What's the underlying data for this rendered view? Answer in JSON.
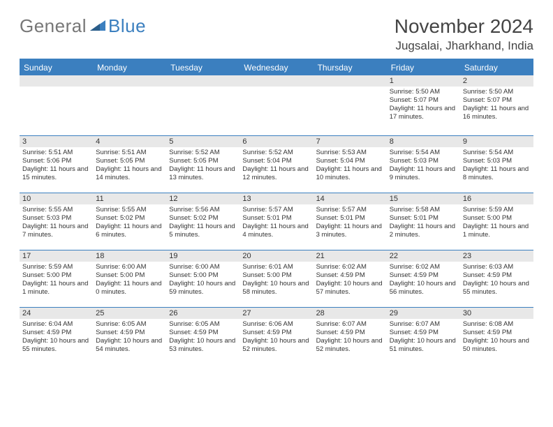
{
  "logo": {
    "general": "General",
    "blue": "Blue"
  },
  "header": {
    "title": "November 2024",
    "location": "Jugsalai, Jharkhand, India"
  },
  "colors": {
    "accent": "#3b7fbf",
    "headerRow": "#e8e8e8",
    "text": "#333333"
  },
  "daysOfWeek": [
    "Sunday",
    "Monday",
    "Tuesday",
    "Wednesday",
    "Thursday",
    "Friday",
    "Saturday"
  ],
  "weeks": [
    [
      {
        "day": "",
        "sunrise": "",
        "sunset": "",
        "daylight": ""
      },
      {
        "day": "",
        "sunrise": "",
        "sunset": "",
        "daylight": ""
      },
      {
        "day": "",
        "sunrise": "",
        "sunset": "",
        "daylight": ""
      },
      {
        "day": "",
        "sunrise": "",
        "sunset": "",
        "daylight": ""
      },
      {
        "day": "",
        "sunrise": "",
        "sunset": "",
        "daylight": ""
      },
      {
        "day": "1",
        "sunrise": "Sunrise: 5:50 AM",
        "sunset": "Sunset: 5:07 PM",
        "daylight": "Daylight: 11 hours and 17 minutes."
      },
      {
        "day": "2",
        "sunrise": "Sunrise: 5:50 AM",
        "sunset": "Sunset: 5:07 PM",
        "daylight": "Daylight: 11 hours and 16 minutes."
      }
    ],
    [
      {
        "day": "3",
        "sunrise": "Sunrise: 5:51 AM",
        "sunset": "Sunset: 5:06 PM",
        "daylight": "Daylight: 11 hours and 15 minutes."
      },
      {
        "day": "4",
        "sunrise": "Sunrise: 5:51 AM",
        "sunset": "Sunset: 5:05 PM",
        "daylight": "Daylight: 11 hours and 14 minutes."
      },
      {
        "day": "5",
        "sunrise": "Sunrise: 5:52 AM",
        "sunset": "Sunset: 5:05 PM",
        "daylight": "Daylight: 11 hours and 13 minutes."
      },
      {
        "day": "6",
        "sunrise": "Sunrise: 5:52 AM",
        "sunset": "Sunset: 5:04 PM",
        "daylight": "Daylight: 11 hours and 12 minutes."
      },
      {
        "day": "7",
        "sunrise": "Sunrise: 5:53 AM",
        "sunset": "Sunset: 5:04 PM",
        "daylight": "Daylight: 11 hours and 10 minutes."
      },
      {
        "day": "8",
        "sunrise": "Sunrise: 5:54 AM",
        "sunset": "Sunset: 5:03 PM",
        "daylight": "Daylight: 11 hours and 9 minutes."
      },
      {
        "day": "9",
        "sunrise": "Sunrise: 5:54 AM",
        "sunset": "Sunset: 5:03 PM",
        "daylight": "Daylight: 11 hours and 8 minutes."
      }
    ],
    [
      {
        "day": "10",
        "sunrise": "Sunrise: 5:55 AM",
        "sunset": "Sunset: 5:03 PM",
        "daylight": "Daylight: 11 hours and 7 minutes."
      },
      {
        "day": "11",
        "sunrise": "Sunrise: 5:55 AM",
        "sunset": "Sunset: 5:02 PM",
        "daylight": "Daylight: 11 hours and 6 minutes."
      },
      {
        "day": "12",
        "sunrise": "Sunrise: 5:56 AM",
        "sunset": "Sunset: 5:02 PM",
        "daylight": "Daylight: 11 hours and 5 minutes."
      },
      {
        "day": "13",
        "sunrise": "Sunrise: 5:57 AM",
        "sunset": "Sunset: 5:01 PM",
        "daylight": "Daylight: 11 hours and 4 minutes."
      },
      {
        "day": "14",
        "sunrise": "Sunrise: 5:57 AM",
        "sunset": "Sunset: 5:01 PM",
        "daylight": "Daylight: 11 hours and 3 minutes."
      },
      {
        "day": "15",
        "sunrise": "Sunrise: 5:58 AM",
        "sunset": "Sunset: 5:01 PM",
        "daylight": "Daylight: 11 hours and 2 minutes."
      },
      {
        "day": "16",
        "sunrise": "Sunrise: 5:59 AM",
        "sunset": "Sunset: 5:00 PM",
        "daylight": "Daylight: 11 hours and 1 minute."
      }
    ],
    [
      {
        "day": "17",
        "sunrise": "Sunrise: 5:59 AM",
        "sunset": "Sunset: 5:00 PM",
        "daylight": "Daylight: 11 hours and 1 minute."
      },
      {
        "day": "18",
        "sunrise": "Sunrise: 6:00 AM",
        "sunset": "Sunset: 5:00 PM",
        "daylight": "Daylight: 11 hours and 0 minutes."
      },
      {
        "day": "19",
        "sunrise": "Sunrise: 6:00 AM",
        "sunset": "Sunset: 5:00 PM",
        "daylight": "Daylight: 10 hours and 59 minutes."
      },
      {
        "day": "20",
        "sunrise": "Sunrise: 6:01 AM",
        "sunset": "Sunset: 5:00 PM",
        "daylight": "Daylight: 10 hours and 58 minutes."
      },
      {
        "day": "21",
        "sunrise": "Sunrise: 6:02 AM",
        "sunset": "Sunset: 4:59 PM",
        "daylight": "Daylight: 10 hours and 57 minutes."
      },
      {
        "day": "22",
        "sunrise": "Sunrise: 6:02 AM",
        "sunset": "Sunset: 4:59 PM",
        "daylight": "Daylight: 10 hours and 56 minutes."
      },
      {
        "day": "23",
        "sunrise": "Sunrise: 6:03 AM",
        "sunset": "Sunset: 4:59 PM",
        "daylight": "Daylight: 10 hours and 55 minutes."
      }
    ],
    [
      {
        "day": "24",
        "sunrise": "Sunrise: 6:04 AM",
        "sunset": "Sunset: 4:59 PM",
        "daylight": "Daylight: 10 hours and 55 minutes."
      },
      {
        "day": "25",
        "sunrise": "Sunrise: 6:05 AM",
        "sunset": "Sunset: 4:59 PM",
        "daylight": "Daylight: 10 hours and 54 minutes."
      },
      {
        "day": "26",
        "sunrise": "Sunrise: 6:05 AM",
        "sunset": "Sunset: 4:59 PM",
        "daylight": "Daylight: 10 hours and 53 minutes."
      },
      {
        "day": "27",
        "sunrise": "Sunrise: 6:06 AM",
        "sunset": "Sunset: 4:59 PM",
        "daylight": "Daylight: 10 hours and 52 minutes."
      },
      {
        "day": "28",
        "sunrise": "Sunrise: 6:07 AM",
        "sunset": "Sunset: 4:59 PM",
        "daylight": "Daylight: 10 hours and 52 minutes."
      },
      {
        "day": "29",
        "sunrise": "Sunrise: 6:07 AM",
        "sunset": "Sunset: 4:59 PM",
        "daylight": "Daylight: 10 hours and 51 minutes."
      },
      {
        "day": "30",
        "sunrise": "Sunrise: 6:08 AM",
        "sunset": "Sunset: 4:59 PM",
        "daylight": "Daylight: 10 hours and 50 minutes."
      }
    ]
  ]
}
